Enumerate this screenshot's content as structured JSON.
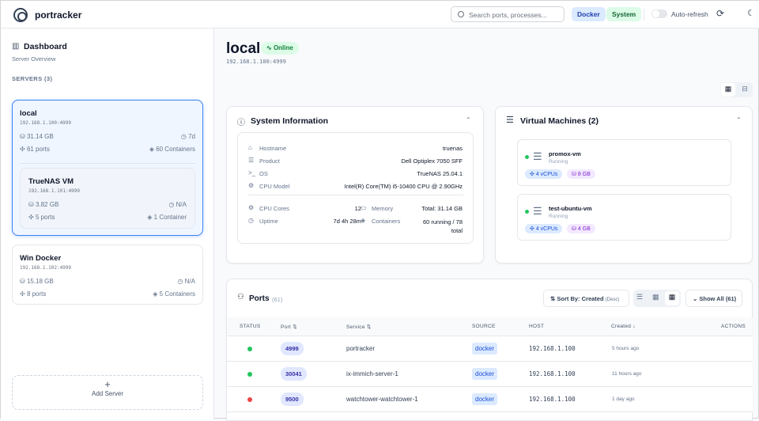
{
  "header": {
    "brand": "portracker",
    "search_placeholder": "Search ports, processes...",
    "filters": [
      {
        "label": "Docker",
        "color": "#dbeafe"
      },
      {
        "label": "System",
        "color": "#dcfce7"
      }
    ],
    "auto_refresh_label": "Auto-refresh",
    "auto_refresh_on": false
  },
  "sidebar": {
    "title": "Dashboard",
    "subtitle": "Server Overview",
    "servers_label": "SERVERS (3)",
    "add_server": "Add Server",
    "servers": [
      {
        "name": "local",
        "ip": "192.168.1.100:4999",
        "memory": "31.14 GB",
        "uptime": "7d",
        "ports": "61 ports",
        "containers": "60 Containers",
        "active": true
      },
      {
        "name": "TrueNAS VM",
        "ip": "192.168.1.101:4999",
        "memory": "3.82 GB",
        "uptime": "N/A",
        "ports": "5 ports",
        "containers": "1 Container"
      },
      {
        "name": "Win Docker",
        "ip": "192.168.1.102:4999",
        "memory": "15.18 GB",
        "uptime": "N/A",
        "ports": "8 ports",
        "containers": "5 Containers"
      }
    ]
  },
  "main": {
    "title": "local",
    "status": "Online",
    "ip": "192.168.1.100:4999",
    "system_info": {
      "title": "System Information",
      "rows": [
        {
          "label": "Hostname",
          "value": "truenas"
        },
        {
          "label": "Product",
          "value": "Dell Optiplex 7050 SFF"
        },
        {
          "label": "OS",
          "value": "TrueNAS 25.04.1"
        },
        {
          "label": "CPU Model",
          "value": "Intel(R) Core(TM) i5-10400 CPU @ 2.90GHz"
        }
      ],
      "cpu_cores_label": "CPU Cores",
      "cpu_cores": "12",
      "uptime_label": "Uptime",
      "uptime": "7d 4h 28m",
      "memory_label": "Memory",
      "memory": "Total: 31.14 GB",
      "containers_label": "Containers",
      "containers": "60 running / 78 total"
    },
    "vms": {
      "title": "Virtual Machines (2)",
      "items": [
        {
          "name": "promox-vm",
          "status": "Running",
          "cpus": "4 vCPUs",
          "memory": "8 GB"
        },
        {
          "name": "test-ubuntu-vm",
          "status": "Running",
          "cpus": "4 vCPUs",
          "memory": "4 GB"
        }
      ]
    },
    "ports": {
      "title": "Ports",
      "count": "(61)",
      "sort_label": "Sort By: Created",
      "sort_dir": "(Desc)",
      "show_all": "Show All (61)",
      "columns": [
        "STATUS",
        "Port ⇅",
        "Service ⇅",
        "SOURCE",
        "HOST",
        "Created ↓",
        "ACTIONS"
      ],
      "rows": [
        {
          "status": "up",
          "port": "4999",
          "service": "portracker",
          "source": "docker",
          "host": "192.168.1.100",
          "created": "5 hours ago"
        },
        {
          "status": "up",
          "port": "30041",
          "service": "ix-immich-server-1",
          "source": "docker",
          "host": "192.168.1.100",
          "created": "11 hours ago"
        },
        {
          "status": "down",
          "port": "9500",
          "service": "watchtower-watchtower-1",
          "source": "docker",
          "host": "192.168.1.100",
          "created": "1 day ago"
        }
      ]
    }
  },
  "colors": {
    "accent": "#3b82f6",
    "online": "#22c55e",
    "offline": "#ef4444"
  }
}
